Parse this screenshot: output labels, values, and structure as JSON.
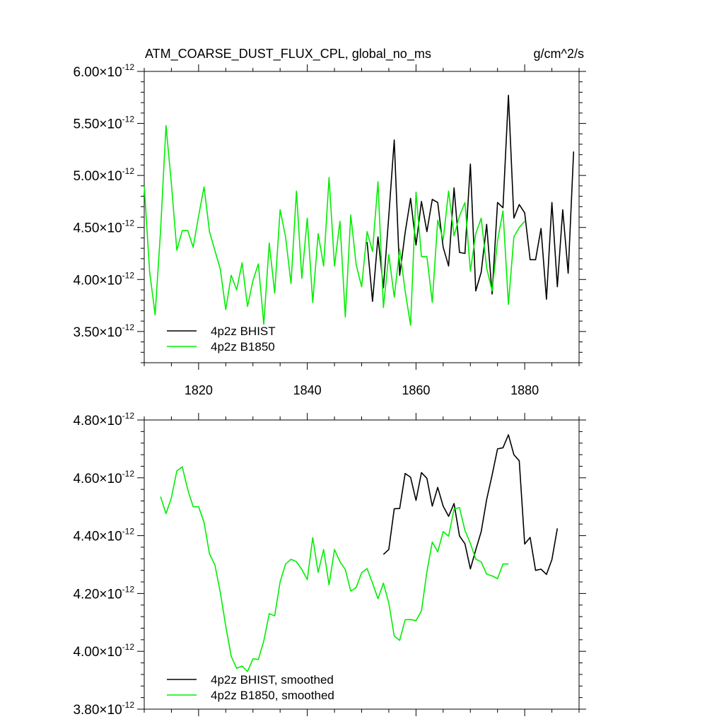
{
  "title_left": "ATM_COARSE_DUST_FLUX_CPL, global_no_ms",
  "title_right": "g/cm^2/s",
  "colors": {
    "bhist": "#000000",
    "b1850": "#00ee00"
  },
  "chart_data": [
    {
      "type": "line",
      "title": "ATM_COARSE_DUST_FLUX_CPL, global_no_ms",
      "units": "g/cm^2/s",
      "xlim": [
        1810,
        1890
      ],
      "ylim": [
        3.2e-12,
        6e-12
      ],
      "ytick_values": [
        3.5e-12,
        4e-12,
        4.5e-12,
        5e-12,
        5.5e-12,
        6e-12
      ],
      "ytick_labels": [
        "3.50",
        "4.00",
        "4.50",
        "5.00",
        "5.50",
        "6.00"
      ],
      "ytick_exp": "-12",
      "xtick_values": [
        1820,
        1840,
        1860,
        1880
      ],
      "xtick_labels": [
        "1820",
        "1840",
        "1860",
        "1880"
      ],
      "legend": [
        "4p2z BHIST",
        "4p2z B1850"
      ],
      "series": [
        {
          "name": "4p2z BHIST",
          "x": [
            1851,
            1852,
            1853,
            1854,
            1855,
            1856,
            1857,
            1858,
            1859,
            1860,
            1861,
            1862,
            1863,
            1864,
            1865,
            1866,
            1867,
            1868,
            1869,
            1870,
            1871,
            1872,
            1873,
            1874,
            1875,
            1876,
            1877,
            1878,
            1879,
            1880,
            1881,
            1882,
            1883,
            1884,
            1885,
            1886,
            1887,
            1888,
            1889
          ],
          "y": [
            4.36,
            3.79,
            4.41,
            3.92,
            4.61,
            5.34,
            4.04,
            4.45,
            4.78,
            4.33,
            4.75,
            4.46,
            4.77,
            4.74,
            4.31,
            4.13,
            4.88,
            4.26,
            4.25,
            5.11,
            3.89,
            4.07,
            4.53,
            3.86,
            4.74,
            4.69,
            5.77,
            4.59,
            4.72,
            4.64,
            4.19,
            4.19,
            4.49,
            3.81,
            4.74,
            3.93,
            4.67,
            4.06,
            5.23
          ]
        },
        {
          "name": "4p2z B1850",
          "x": [
            1810,
            1811,
            1812,
            1813,
            1814,
            1815,
            1816,
            1817,
            1818,
            1819,
            1820,
            1821,
            1822,
            1823,
            1824,
            1825,
            1826,
            1827,
            1828,
            1829,
            1830,
            1831,
            1832,
            1833,
            1834,
            1835,
            1836,
            1837,
            1838,
            1839,
            1840,
            1841,
            1842,
            1843,
            1844,
            1845,
            1846,
            1847,
            1848,
            1849,
            1850,
            1851,
            1852,
            1853,
            1854,
            1855,
            1856,
            1857,
            1858,
            1859,
            1860,
            1861,
            1862,
            1863,
            1864,
            1865,
            1866,
            1867,
            1868,
            1869,
            1870,
            1871,
            1872,
            1873,
            1874,
            1875,
            1876,
            1877,
            1878,
            1879,
            1880
          ],
          "y": [
            4.9,
            4.07,
            3.66,
            4.47,
            5.48,
            4.92,
            4.28,
            4.47,
            4.47,
            4.31,
            4.61,
            4.89,
            4.46,
            4.28,
            4.1,
            3.71,
            4.04,
            3.9,
            4.16,
            3.74,
            3.99,
            4.15,
            3.57,
            4.35,
            3.87,
            4.67,
            4.41,
            3.96,
            4.85,
            4.01,
            4.59,
            3.78,
            4.44,
            4.13,
            4.98,
            4.13,
            4.56,
            3.64,
            4.62,
            4.14,
            3.93,
            4.46,
            4.27,
            4.94,
            3.73,
            4.24,
            3.83,
            4.29,
            3.89,
            3.56,
            4.84,
            4.22,
            4.22,
            3.78,
            4.57,
            4.38,
            4.85,
            4.42,
            4.61,
            4.74,
            4.08,
            4.44,
            4.59,
            4.11,
            3.89,
            4.37,
            4.66,
            3.76,
            4.41,
            4.5,
            4.56
          ]
        }
      ]
    },
    {
      "type": "line",
      "xlim": [
        1810,
        1890
      ],
      "ylim": [
        3.8e-12,
        4.8e-12
      ],
      "ytick_values": [
        3.8e-12,
        4e-12,
        4.2e-12,
        4.4e-12,
        4.6e-12,
        4.8e-12
      ],
      "ytick_labels": [
        "3.80",
        "4.00",
        "4.20",
        "4.40",
        "4.60",
        "4.80"
      ],
      "ytick_exp": "-12",
      "legend": [
        "4p2z BHIST, smoothed",
        "4p2z B1850, smoothed"
      ],
      "series": [
        {
          "name": "4p2z BHIST, smoothed",
          "x": [
            1854,
            1855,
            1856,
            1857,
            1858,
            1859,
            1860,
            1861,
            1862,
            1863,
            1864,
            1865,
            1866,
            1867,
            1868,
            1869,
            1870,
            1871,
            1872,
            1873,
            1874,
            1875,
            1876,
            1877,
            1878,
            1879,
            1880,
            1881,
            1882,
            1883,
            1884,
            1885,
            1886
          ],
          "y": [
            4.335,
            4.352,
            4.493,
            4.494,
            4.615,
            4.602,
            4.522,
            4.618,
            4.598,
            4.502,
            4.567,
            4.502,
            4.467,
            4.511,
            4.399,
            4.372,
            4.285,
            4.351,
            4.414,
            4.525,
            4.609,
            4.7,
            4.704,
            4.749,
            4.68,
            4.659,
            4.371,
            4.394,
            4.28,
            4.284,
            4.266,
            4.317,
            4.425
          ]
        },
        {
          "name": "4p2z B1850, smoothed",
          "x": [
            1813,
            1814,
            1815,
            1816,
            1817,
            1818,
            1819,
            1820,
            1821,
            1822,
            1823,
            1824,
            1825,
            1826,
            1827,
            1828,
            1829,
            1830,
            1831,
            1832,
            1833,
            1834,
            1835,
            1836,
            1837,
            1838,
            1839,
            1840,
            1841,
            1842,
            1843,
            1844,
            1845,
            1846,
            1847,
            1848,
            1849,
            1850,
            1851,
            1852,
            1853,
            1854,
            1855,
            1856,
            1857,
            1858,
            1859,
            1860,
            1861,
            1862,
            1863,
            1864,
            1865,
            1866,
            1867,
            1868,
            1869,
            1870,
            1871,
            1872,
            1873,
            1874,
            1875,
            1876,
            1877
          ],
          "y": [
            4.535,
            4.476,
            4.531,
            4.624,
            4.638,
            4.56,
            4.5,
            4.5,
            4.446,
            4.337,
            4.299,
            4.204,
            4.087,
            3.983,
            3.941,
            3.949,
            3.93,
            3.974,
            3.972,
            4.036,
            4.13,
            4.123,
            4.24,
            4.302,
            4.318,
            4.31,
            4.283,
            4.248,
            4.393,
            4.273,
            4.352,
            4.23,
            4.352,
            4.31,
            4.283,
            4.208,
            4.221,
            4.272,
            4.286,
            4.236,
            4.182,
            4.236,
            4.167,
            4.053,
            4.038,
            4.109,
            4.11,
            4.106,
            4.14,
            4.275,
            4.378,
            4.344,
            4.414,
            4.398,
            4.492,
            4.497,
            4.418,
            4.373,
            4.319,
            4.309,
            4.267,
            4.261,
            4.251,
            4.302,
            4.302
          ]
        }
      ]
    }
  ]
}
